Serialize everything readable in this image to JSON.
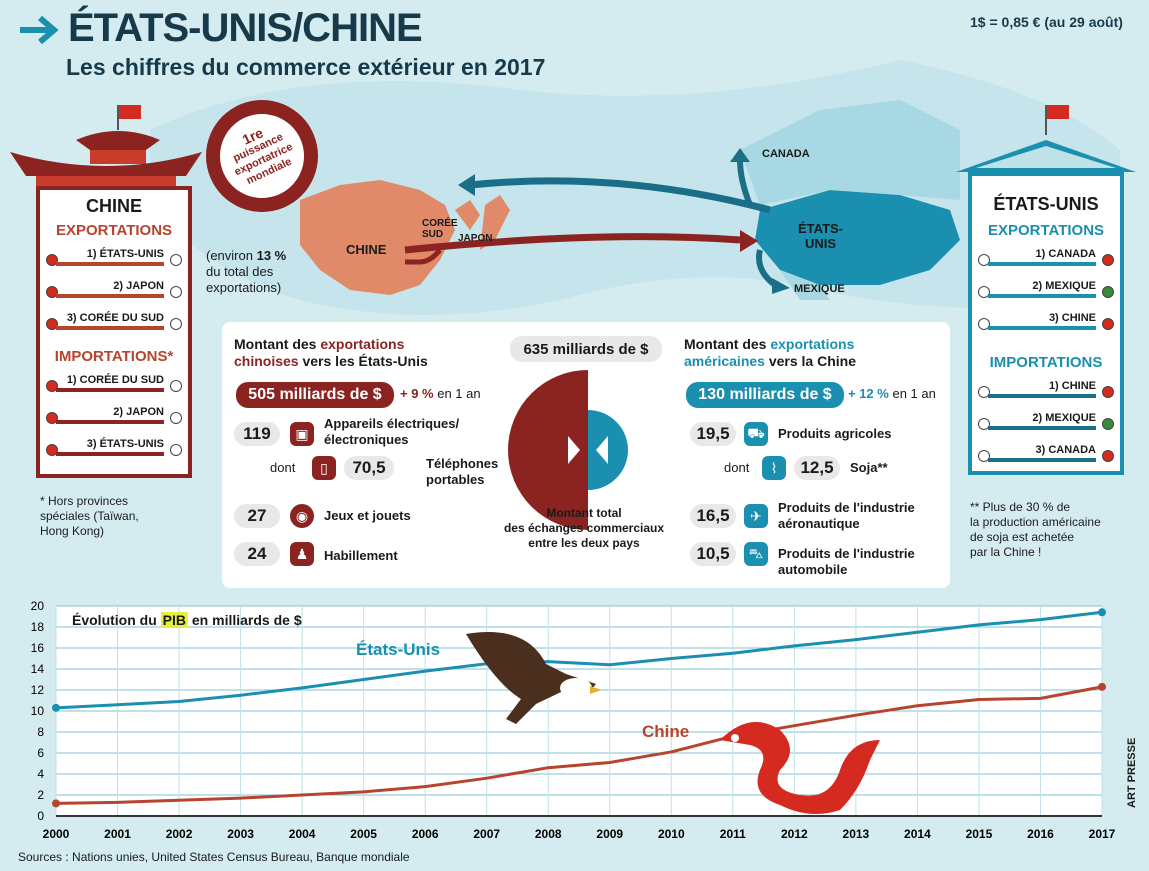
{
  "header": {
    "title": "ÉTATS-UNIS/CHINE",
    "subtitle": "Les chiffres du commerce extérieur en 2017",
    "rate": "1$ = 0,85 € (au 29 août)"
  },
  "seal": {
    "line1": "1re",
    "line2": "puissance",
    "line3": "exportatrice",
    "line4": "mondiale"
  },
  "china_share": {
    "line1": "(environ",
    "pct": "13 %",
    "line2": "du total des",
    "line3": "exportations)"
  },
  "map_labels": {
    "china": "CHINE",
    "korea": "CORÉE",
    "korea2": "SUD",
    "japan": "JAPON",
    "canada": "CANADA",
    "usa1": "ÉTATS-",
    "usa2": "UNIS",
    "mexico": "MEXIQUE"
  },
  "china_panel": {
    "title": "CHINE",
    "exports_title": "EXPORTATIONS",
    "exports": [
      "1) ÉTATS-UNIS",
      "2) JAPON",
      "3) CORÉE DU SUD"
    ],
    "imports_title": "IMPORTATIONS*",
    "imports": [
      "1) CORÉE DU SUD",
      "2) JAPON",
      "3) ÉTATS-UNIS"
    ],
    "note": [
      "* Hors provinces",
      "spéciales (Taïwan,",
      "Hong Kong)"
    ]
  },
  "us_panel": {
    "title": "ÉTATS-UNIS",
    "exports_title": "EXPORTATIONS",
    "exports": [
      "1) CANADA",
      "2) MEXIQUE",
      "3) CHINE"
    ],
    "imports_title": "IMPORTATIONS",
    "imports": [
      "1) CHINE",
      "2) MEXIQUE",
      "3) CANADA"
    ],
    "note": [
      "** Plus de 30 % de",
      "la production américaine",
      "de soja est achetée",
      "par la Chine !"
    ]
  },
  "middle": {
    "cn_head1": "Montant des ",
    "cn_head_hl": "exportations",
    "cn_head2_hl": "chinoises",
    "cn_head2": " vers les États-Unis",
    "cn_total": "505 milliards de $",
    "cn_growth": "+ 9 %",
    "cn_growth_sfx": "en 1 an",
    "cn_items": [
      {
        "value": "119",
        "label1": "Appareils électriques/",
        "label2": "électroniques"
      },
      {
        "value": "70,5",
        "label1": "Téléphones",
        "label2": "portables",
        "prefix": "dont"
      },
      {
        "value": "27",
        "label1": "Jeux et jouets"
      },
      {
        "value": "24",
        "label1": "Habillement"
      }
    ],
    "total": "635 milliards de $",
    "total_caption": [
      "Montant total",
      "des échanges commerciaux",
      "entre les deux pays"
    ],
    "us_head1": "Montant des ",
    "us_head_hl": "exportations",
    "us_head2_hl": "américaines",
    "us_head2": " vers la Chine",
    "us_total": "130 milliards de $",
    "us_growth": "+ 12 %",
    "us_growth_sfx": "en 1 an",
    "us_items": [
      {
        "value": "19,5",
        "label1": "Produits agricoles"
      },
      {
        "value": "12,5",
        "label1": "Soja**",
        "prefix": "dont"
      },
      {
        "value": "16,5",
        "label1": "Produits de l'industrie",
        "label2": "aéronautique"
      },
      {
        "value": "10,5",
        "label1": "Produits de l'industrie",
        "label2": "automobile"
      }
    ]
  },
  "chart_data": {
    "type": "line",
    "title_pre": "Évolution du ",
    "title_hl": "PIB",
    "title_post": " en milliards de $",
    "x": [
      "2000",
      "2001",
      "2002",
      "2003",
      "2004",
      "2005",
      "2006",
      "2007",
      "2008",
      "2009",
      "2010",
      "2011",
      "2012",
      "2013",
      "2014",
      "2015",
      "2016",
      "2017"
    ],
    "yticks": [
      0,
      2,
      4,
      6,
      8,
      10,
      12,
      14,
      16,
      18,
      20
    ],
    "ylim": [
      0,
      20
    ],
    "series": [
      {
        "name": "États-Unis",
        "color": "#1a8fb0",
        "values": [
          10.3,
          10.6,
          10.9,
          11.5,
          12.2,
          13.0,
          13.8,
          14.5,
          14.7,
          14.4,
          15.0,
          15.5,
          16.2,
          16.8,
          17.5,
          18.2,
          18.7,
          19.4
        ]
      },
      {
        "name": "Chine",
        "color": "#b7442e",
        "values": [
          1.2,
          1.3,
          1.5,
          1.7,
          2.0,
          2.3,
          2.8,
          3.6,
          4.6,
          5.1,
          6.1,
          7.6,
          8.6,
          9.6,
          10.5,
          11.1,
          11.2,
          12.3
        ]
      }
    ]
  },
  "footer": {
    "sources": "Sources : Nations unies, United States Census Bureau, Banque mondiale",
    "credit": "ART PRESSE"
  }
}
